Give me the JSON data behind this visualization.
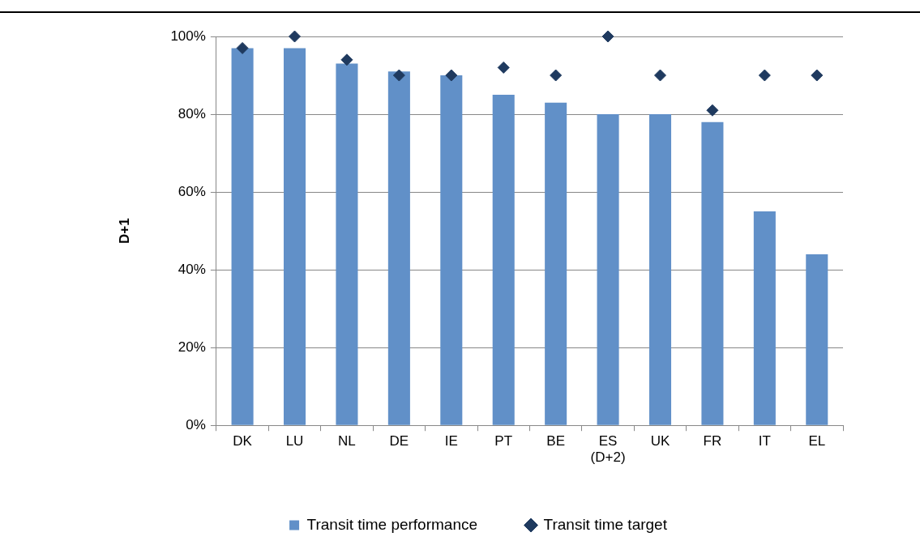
{
  "chart_data": {
    "type": "bar",
    "ylabel": "D+1",
    "categories": [
      "DK",
      "LU",
      "NL",
      "DE",
      "IE",
      "PT",
      "BE",
      "ES\n(D+2)",
      "UK",
      "FR",
      "IT",
      "EL"
    ],
    "series": [
      {
        "name": "Transit time performance",
        "color": "#6190c8",
        "values": [
          97,
          97,
          93,
          91,
          90,
          85,
          83,
          80,
          80,
          78,
          55,
          44
        ]
      },
      {
        "name": "Transit time target",
        "type": "scatter",
        "color": "#1f3a5f",
        "marker": "diamond",
        "x": [
          "DK",
          "LU",
          "NL",
          "DE",
          "IE",
          "PT",
          "BE",
          "ES\n(D+2)",
          "UK",
          "FR",
          "IT",
          "EL"
        ],
        "values": [
          97,
          100,
          94,
          90,
          90,
          92,
          90,
          100,
          90,
          81,
          90,
          90
        ]
      }
    ],
    "ylim": [
      0,
      100
    ],
    "yticks": [
      {
        "value": 0,
        "label": "0%"
      },
      {
        "value": 20,
        "label": "20%"
      },
      {
        "value": 40,
        "label": "40%"
      },
      {
        "value": 60,
        "label": "60%"
      },
      {
        "value": 80,
        "label": "80%"
      },
      {
        "value": 100,
        "label": "100%"
      }
    ],
    "grid": "y",
    "legend": "bottom"
  }
}
